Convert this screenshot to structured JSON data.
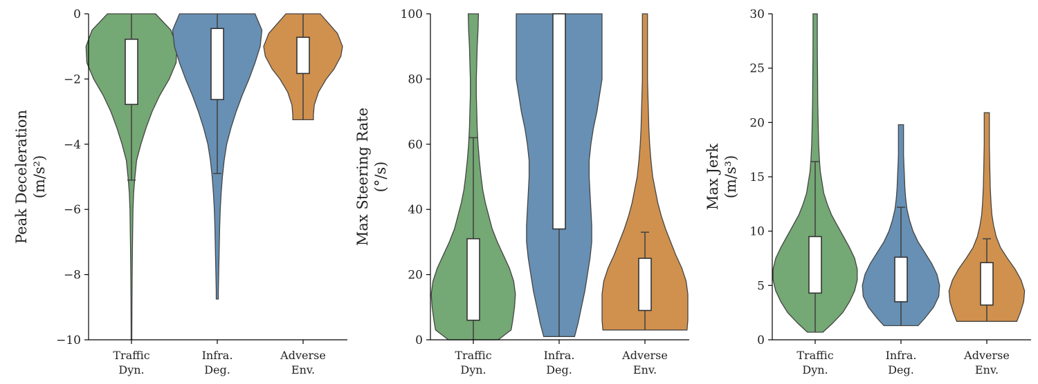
{
  "chart_data": [
    {
      "type": "violin",
      "ylabel": [
        "Peak Deceleration",
        "(m/s²)"
      ],
      "ylim": [
        -10,
        0
      ],
      "yticks": [
        0,
        -2,
        -4,
        -6,
        -8,
        -10
      ],
      "ytick_labels": [
        "0",
        "−2",
        "−4",
        "−6",
        "−8",
        "−10"
      ],
      "categories": [
        [
          "Traffic",
          "Dyn."
        ],
        [
          "Infra.",
          "Deg."
        ],
        [
          "Adverse",
          "Env."
        ]
      ],
      "violins": [
        {
          "color": "#74a874",
          "q1": -2.78,
          "q3": -0.78,
          "whisker_low": -5.1,
          "whisker_high": 0,
          "cap_low": true,
          "cap_high": false,
          "profile": [
            [
              0,
              0.28
            ],
            [
              -0.5,
              0.46
            ],
            [
              -1.0,
              0.53
            ],
            [
              -1.5,
              0.52
            ],
            [
              -2.0,
              0.44
            ],
            [
              -2.5,
              0.33
            ],
            [
              -3.0,
              0.24
            ],
            [
              -3.5,
              0.17
            ],
            [
              -4.0,
              0.11
            ],
            [
              -4.5,
              0.06
            ],
            [
              -5.0,
              0.04
            ],
            [
              -5.5,
              0.025
            ],
            [
              -6.0,
              0.018
            ],
            [
              -7.0,
              0.012
            ],
            [
              -8.0,
              0.008
            ],
            [
              -9.0,
              0.006
            ],
            [
              -10.0,
              0.004
            ]
          ]
        },
        {
          "color": "#6790b4",
          "q1": -2.63,
          "q3": -0.45,
          "whisker_low": -4.9,
          "whisker_high": 0,
          "cap_low": true,
          "cap_high": false,
          "profile": [
            [
              0,
              0.44
            ],
            [
              -0.5,
              0.52
            ],
            [
              -1.0,
              0.5
            ],
            [
              -1.5,
              0.44
            ],
            [
              -2.0,
              0.37
            ],
            [
              -2.5,
              0.29
            ],
            [
              -3.0,
              0.22
            ],
            [
              -3.5,
              0.16
            ],
            [
              -4.0,
              0.11
            ],
            [
              -4.5,
              0.08
            ],
            [
              -5.0,
              0.06
            ],
            [
              -5.5,
              0.045
            ],
            [
              -6.0,
              0.035
            ],
            [
              -6.5,
              0.028
            ],
            [
              -7.0,
              0.024
            ],
            [
              -7.5,
              0.02
            ],
            [
              -8.0,
              0.016
            ],
            [
              -8.5,
              0.012
            ],
            [
              -8.75,
              0.012
            ]
          ]
        },
        {
          "color": "#d0914e",
          "q1": -1.83,
          "q3": -0.72,
          "whisker_low": -3.25,
          "whisker_high": 0,
          "cap_low": false,
          "cap_high": false,
          "profile": [
            [
              0,
              0.2
            ],
            [
              -0.3,
              0.3
            ],
            [
              -0.6,
              0.4
            ],
            [
              -1.0,
              0.46
            ],
            [
              -1.3,
              0.44
            ],
            [
              -1.7,
              0.36
            ],
            [
              -2.0,
              0.27
            ],
            [
              -2.4,
              0.18
            ],
            [
              -2.8,
              0.13
            ],
            [
              -3.1,
              0.12
            ],
            [
              -3.25,
              0.12
            ]
          ]
        }
      ]
    },
    {
      "type": "violin",
      "ylabel": [
        "Max Steering Rate",
        "(°/s)"
      ],
      "ylim": [
        0,
        100
      ],
      "yticks": [
        0,
        20,
        40,
        60,
        80,
        100
      ],
      "ytick_labels": [
        "0",
        "20",
        "40",
        "60",
        "80",
        "100"
      ],
      "categories": [
        [
          "Traffic",
          "Dyn."
        ],
        [
          "Infra.",
          "Deg."
        ],
        [
          "Adverse",
          "Env."
        ]
      ],
      "violins": [
        {
          "color": "#74a874",
          "q1": 6,
          "q3": 31,
          "whisker_low": 0,
          "whisker_high": 62,
          "cap_low": false,
          "cap_high": true,
          "profile": [
            [
              0,
              0.29
            ],
            [
              3,
              0.44
            ],
            [
              6,
              0.46
            ],
            [
              10,
              0.48
            ],
            [
              14,
              0.49
            ],
            [
              18,
              0.47
            ],
            [
              22,
              0.42
            ],
            [
              26,
              0.35
            ],
            [
              30,
              0.28
            ],
            [
              34,
              0.22
            ],
            [
              38,
              0.18
            ],
            [
              42,
              0.14
            ],
            [
              46,
              0.11
            ],
            [
              50,
              0.09
            ],
            [
              55,
              0.07
            ],
            [
              60,
              0.055
            ],
            [
              65,
              0.045
            ],
            [
              70,
              0.04
            ],
            [
              75,
              0.035
            ],
            [
              80,
              0.035
            ],
            [
              85,
              0.04
            ],
            [
              90,
              0.045
            ],
            [
              95,
              0.055
            ],
            [
              100,
              0.06
            ]
          ]
        },
        {
          "color": "#6790b4",
          "q1": 34,
          "q3": 100,
          "whisker_low": 1,
          "whisker_high": 100,
          "cap_low": false,
          "cap_high": false,
          "profile": [
            [
              1,
              0.18
            ],
            [
              5,
              0.22
            ],
            [
              10,
              0.26
            ],
            [
              15,
              0.3
            ],
            [
              20,
              0.33
            ],
            [
              25,
              0.36
            ],
            [
              30,
              0.38
            ],
            [
              35,
              0.38
            ],
            [
              40,
              0.37
            ],
            [
              45,
              0.36
            ],
            [
              50,
              0.35
            ],
            [
              55,
              0.35
            ],
            [
              60,
              0.37
            ],
            [
              65,
              0.4
            ],
            [
              70,
              0.44
            ],
            [
              75,
              0.47
            ],
            [
              80,
              0.5
            ],
            [
              85,
              0.5
            ],
            [
              90,
              0.5
            ],
            [
              95,
              0.5
            ],
            [
              100,
              0.5
            ]
          ]
        },
        {
          "color": "#d0914e",
          "q1": 9,
          "q3": 25,
          "whisker_low": 3,
          "whisker_high": 33,
          "cap_low": false,
          "cap_high": true,
          "profile": [
            [
              3,
              0.49
            ],
            [
              6,
              0.5
            ],
            [
              10,
              0.5
            ],
            [
              14,
              0.5
            ],
            [
              18,
              0.48
            ],
            [
              22,
              0.43
            ],
            [
              26,
              0.36
            ],
            [
              30,
              0.3
            ],
            [
              34,
              0.24
            ],
            [
              38,
              0.19
            ],
            [
              42,
              0.15
            ],
            [
              46,
              0.12
            ],
            [
              50,
              0.09
            ],
            [
              55,
              0.07
            ],
            [
              60,
              0.055
            ],
            [
              65,
              0.045
            ],
            [
              70,
              0.04
            ],
            [
              75,
              0.035
            ],
            [
              80,
              0.03
            ],
            [
              85,
              0.03
            ],
            [
              90,
              0.03
            ],
            [
              95,
              0.03
            ],
            [
              100,
              0.03
            ]
          ]
        }
      ]
    },
    {
      "type": "violin",
      "ylabel": [
        "Max Jerk",
        "(m/s³)"
      ],
      "ylim": [
        0,
        30
      ],
      "yticks": [
        0,
        5,
        10,
        15,
        20,
        25,
        30
      ],
      "ytick_labels": [
        "0",
        "5",
        "10",
        "15",
        "20",
        "25",
        "30"
      ],
      "categories": [
        [
          "Traffic",
          "Dyn."
        ],
        [
          "Infra.",
          "Deg."
        ],
        [
          "Adverse",
          "Env."
        ]
      ],
      "violins": [
        {
          "color": "#74a874",
          "q1": 4.3,
          "q3": 9.5,
          "whisker_low": 0.7,
          "whisker_high": 16.4,
          "cap_low": false,
          "cap_high": true,
          "profile": [
            [
              0.7,
              0.09
            ],
            [
              1.5,
              0.2
            ],
            [
              2.5,
              0.32
            ],
            [
              3.5,
              0.4
            ],
            [
              4.5,
              0.46
            ],
            [
              5.5,
              0.49
            ],
            [
              6.5,
              0.49
            ],
            [
              7.5,
              0.46
            ],
            [
              8.5,
              0.4
            ],
            [
              9.5,
              0.33
            ],
            [
              10.5,
              0.26
            ],
            [
              11.5,
              0.19
            ],
            [
              12.5,
              0.14
            ],
            [
              13.5,
              0.1
            ],
            [
              14.5,
              0.08
            ],
            [
              15.5,
              0.06
            ],
            [
              16.5,
              0.05
            ],
            [
              18,
              0.04
            ],
            [
              20,
              0.035
            ],
            [
              22,
              0.03
            ],
            [
              24,
              0.028
            ],
            [
              26,
              0.026
            ],
            [
              28,
              0.025
            ],
            [
              30,
              0.025
            ]
          ]
        },
        {
          "color": "#6790b4",
          "q1": 3.5,
          "q3": 7.6,
          "whisker_low": 1.3,
          "whisker_high": 12.2,
          "cap_low": false,
          "cap_high": true,
          "profile": [
            [
              1.3,
              0.2
            ],
            [
              2,
              0.28
            ],
            [
              3,
              0.38
            ],
            [
              4,
              0.44
            ],
            [
              5,
              0.45
            ],
            [
              6,
              0.42
            ],
            [
              7,
              0.36
            ],
            [
              8,
              0.28
            ],
            [
              9,
              0.2
            ],
            [
              10,
              0.14
            ],
            [
              11,
              0.1
            ],
            [
              12,
              0.07
            ],
            [
              13,
              0.055
            ],
            [
              14,
              0.045
            ],
            [
              15,
              0.04
            ],
            [
              16,
              0.035
            ],
            [
              17,
              0.03
            ],
            [
              18,
              0.03
            ],
            [
              19,
              0.03
            ],
            [
              19.8,
              0.03
            ]
          ]
        },
        {
          "color": "#d0914e",
          "q1": 3.2,
          "q3": 7.1,
          "whisker_low": 1.7,
          "whisker_high": 9.3,
          "cap_low": false,
          "cap_high": true,
          "profile": [
            [
              1.7,
              0.35
            ],
            [
              2.5,
              0.39
            ],
            [
              3.5,
              0.43
            ],
            [
              4.5,
              0.44
            ],
            [
              5.5,
              0.4
            ],
            [
              6.5,
              0.33
            ],
            [
              7.5,
              0.24
            ],
            [
              8.5,
              0.16
            ],
            [
              9.5,
              0.11
            ],
            [
              10.5,
              0.08
            ],
            [
              11.5,
              0.06
            ],
            [
              12.5,
              0.05
            ],
            [
              14,
              0.04
            ],
            [
              16,
              0.035
            ],
            [
              18,
              0.03
            ],
            [
              20,
              0.03
            ],
            [
              20.9,
              0.03
            ]
          ]
        }
      ]
    }
  ]
}
